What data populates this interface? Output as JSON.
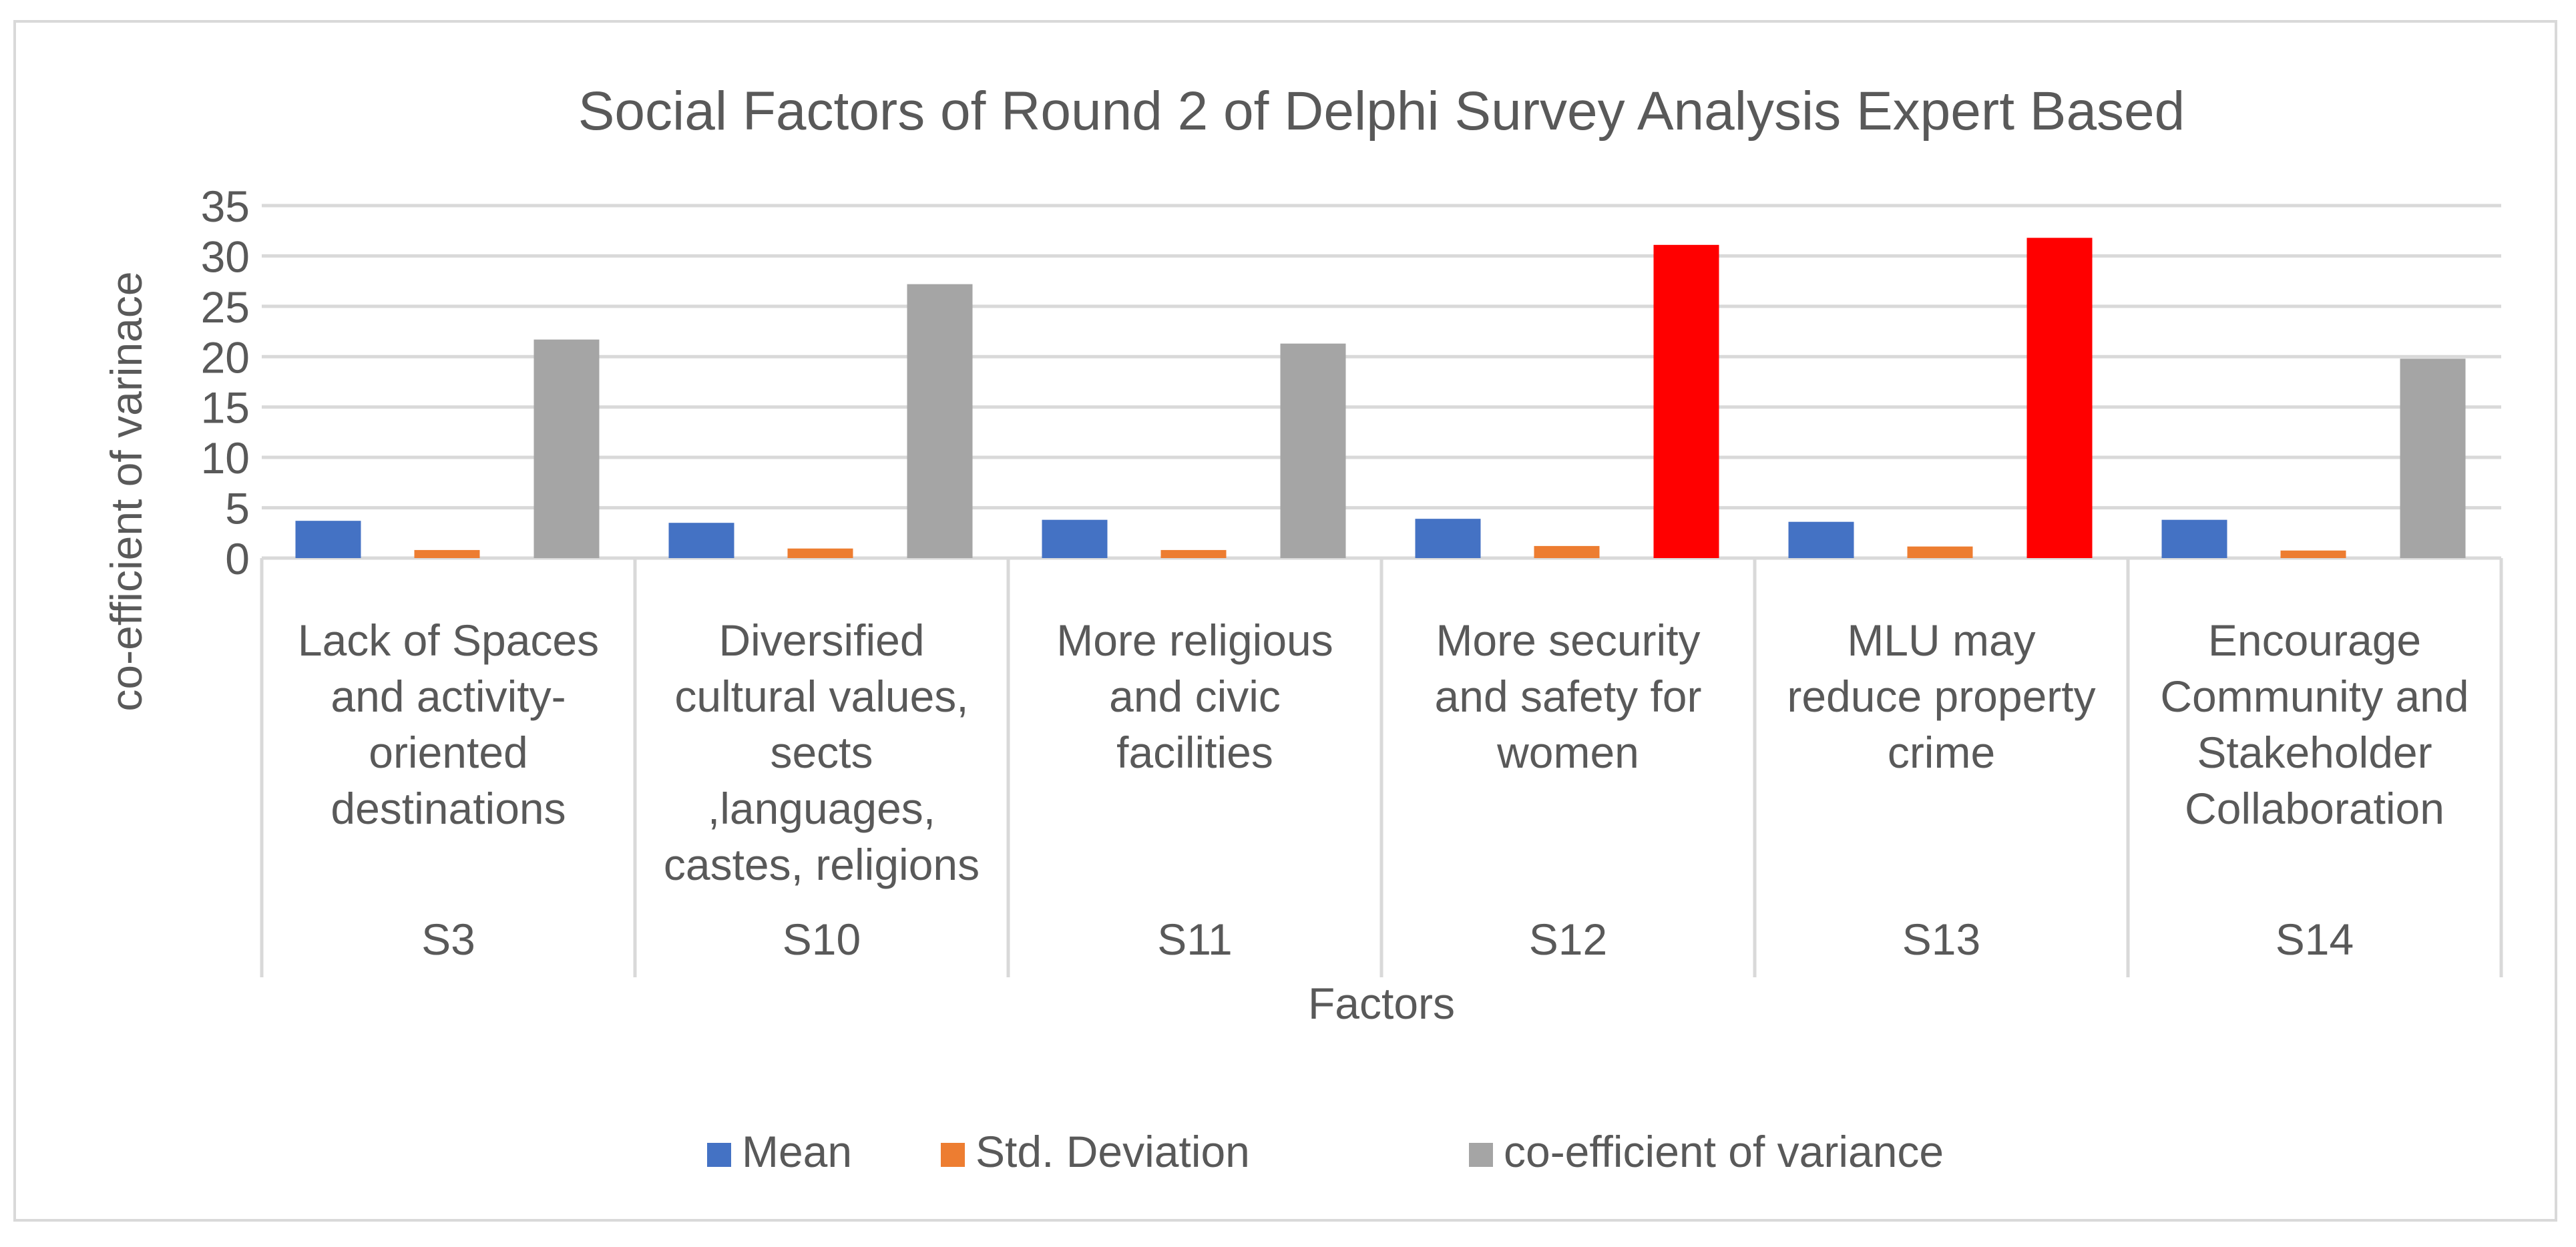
{
  "chart_data": {
    "type": "bar",
    "title": "Social Factors of Round 2 of Delphi Survey Analysis Expert Based",
    "xlabel": "Factors",
    "ylabel": "co-efficient of varinace",
    "ylim": [
      0,
      35
    ],
    "yticks": [
      0,
      5,
      10,
      15,
      20,
      25,
      30,
      35
    ],
    "grid": true,
    "legend_position": "bottom",
    "categories": [
      "S3",
      "S10",
      "S11",
      "S12",
      "S13",
      "S14"
    ],
    "category_descriptions": [
      [
        "Lack of Spaces",
        "and activity-",
        "oriented",
        "destinations"
      ],
      [
        "Diversified",
        "cultural values,",
        "sects",
        ",languages,",
        "castes, religions"
      ],
      [
        "More religious",
        "and civic",
        "facilities"
      ],
      [
        "More security",
        "and safety for",
        "women"
      ],
      [
        "MLU may",
        "reduce property",
        "crime"
      ],
      [
        "Encourage",
        "Community and",
        "Stakeholder",
        "Collaboration"
      ]
    ],
    "series": [
      {
        "name": "Mean",
        "color": "#4472c4",
        "values": [
          3.7,
          3.5,
          3.8,
          3.9,
          3.6,
          3.8
        ]
      },
      {
        "name": "Std. Deviation",
        "color": "#ed7d31",
        "values": [
          0.8,
          0.95,
          0.8,
          1.2,
          1.15,
          0.75
        ]
      },
      {
        "name": "co-efficient of variance",
        "color": "#a5a5a5",
        "values": [
          21.7,
          27.2,
          21.3,
          31.1,
          31.8,
          19.8
        ],
        "highlight_color": "#ff0000",
        "highlight_indices": [
          3,
          4
        ]
      }
    ]
  }
}
